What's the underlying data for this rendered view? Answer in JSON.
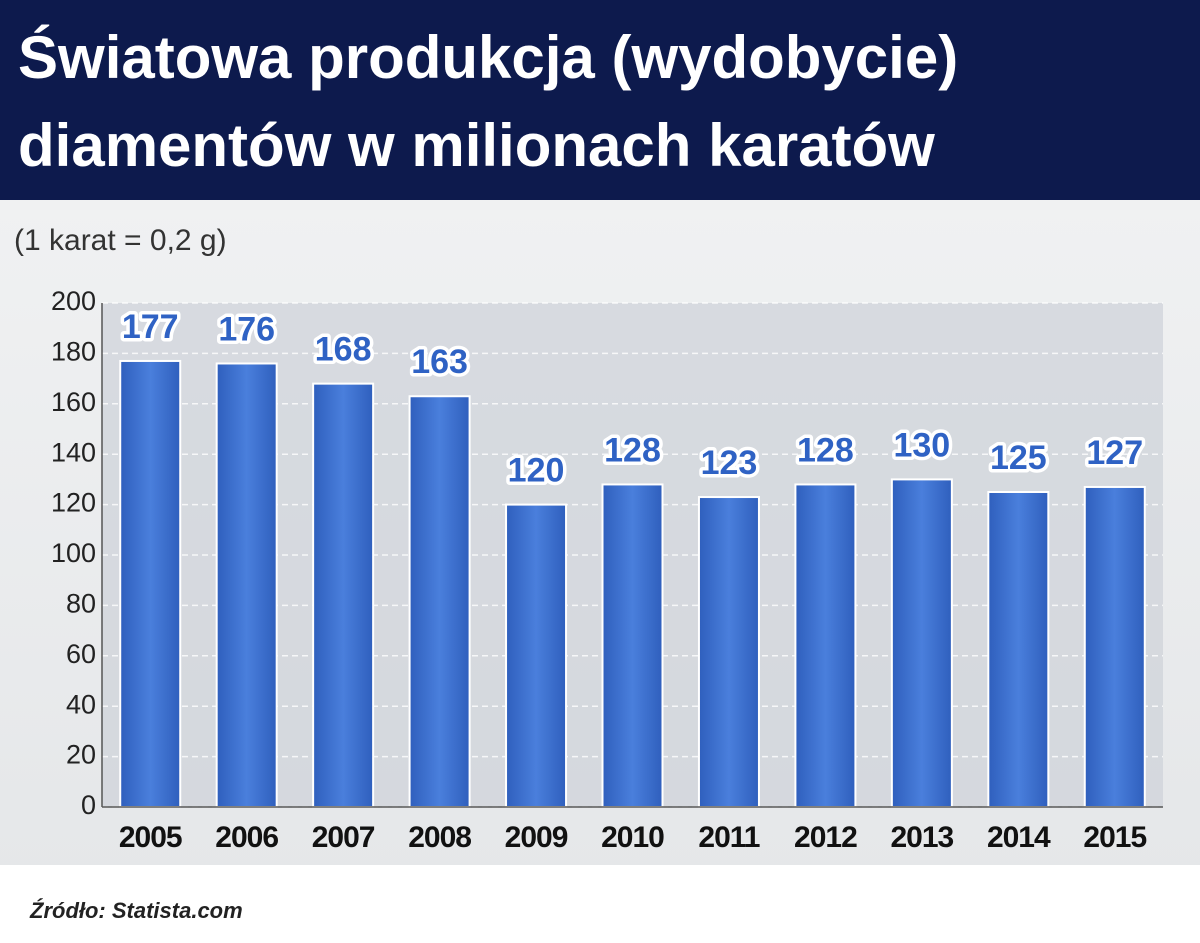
{
  "chart_data": {
    "type": "bar",
    "title": [
      "Światowa produkcja (wydobycie)",
      "diamentów w milionach karatów"
    ],
    "subtitle": "(1 karat = 0,2 g)",
    "source": "Źródło: Statista.com",
    "categories": [
      "2005",
      "2006",
      "2007",
      "2008",
      "2009",
      "2010",
      "2011",
      "2012",
      "2013",
      "2014",
      "2015"
    ],
    "values": [
      177,
      176,
      168,
      163,
      120,
      128,
      123,
      128,
      130,
      125,
      127
    ],
    "color": "#3a6fd0",
    "ylim": [
      0,
      200
    ],
    "yticks": [
      0,
      20,
      40,
      60,
      80,
      100,
      120,
      140,
      160,
      180,
      200
    ],
    "grid": true
  }
}
